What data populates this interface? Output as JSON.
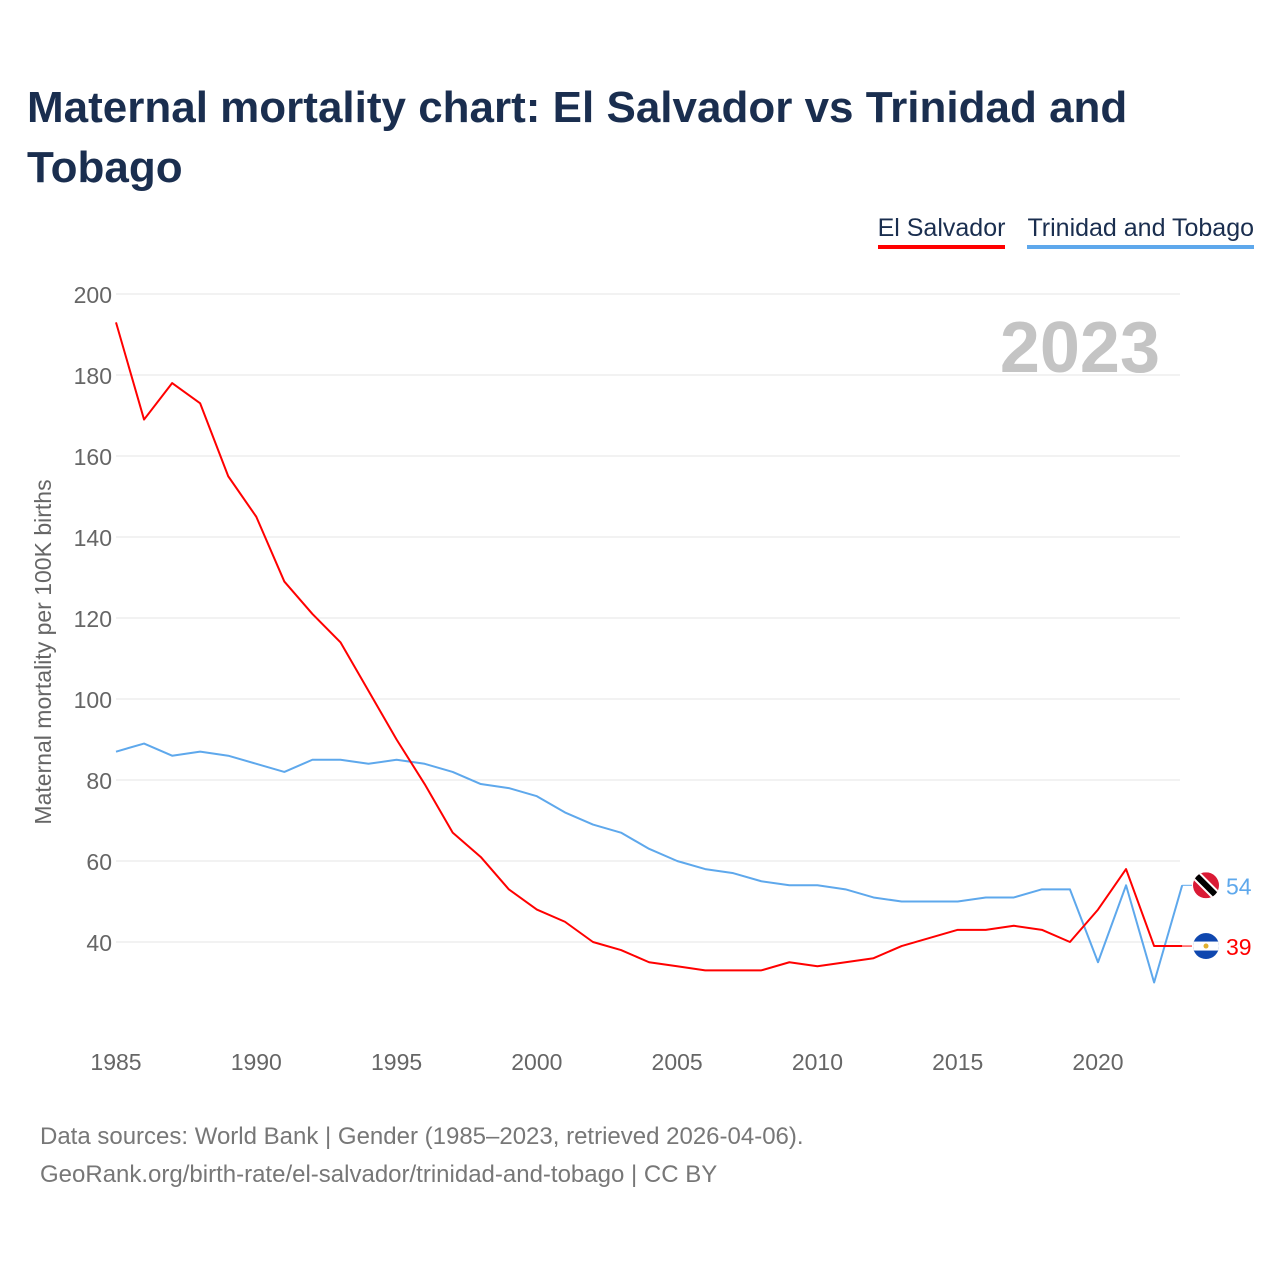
{
  "title": "Maternal mortality chart: El Salvador vs Trinidad and Tobago",
  "footer": {
    "line1": "Data sources: World Bank | Gender (1985–2023, retrieved 2026-04-06).",
    "line2": "GeoRank.org/birth-rate/el-salvador/trinidad-and-tobago | CC BY"
  },
  "chart_data": {
    "type": "line",
    "title": "Maternal mortality chart: El Salvador vs Trinidad and Tobago",
    "xlabel": "",
    "ylabel": "Maternal mortality per 100K births",
    "year_label": "2023",
    "xlim": [
      1985,
      2023
    ],
    "ylim": [
      20,
      200
    ],
    "yticks": [
      40,
      60,
      80,
      100,
      120,
      140,
      160,
      180,
      200
    ],
    "xticks": [
      1985,
      1990,
      1995,
      2000,
      2005,
      2010,
      2015,
      2020
    ],
    "legend_position": "top-right",
    "x": [
      1985,
      1986,
      1987,
      1988,
      1989,
      1990,
      1991,
      1992,
      1993,
      1994,
      1995,
      1996,
      1997,
      1998,
      1999,
      2000,
      2001,
      2002,
      2003,
      2004,
      2005,
      2006,
      2007,
      2008,
      2009,
      2010,
      2011,
      2012,
      2013,
      2014,
      2015,
      2016,
      2017,
      2018,
      2019,
      2020,
      2021,
      2022,
      2023
    ],
    "series": [
      {
        "name": "El Salvador",
        "color": "#ff0000",
        "end_label": "39",
        "values": [
          193,
          169,
          178,
          173,
          155,
          145,
          129,
          121,
          114,
          102,
          90,
          79,
          67,
          61,
          53,
          48,
          45,
          40,
          38,
          35,
          34,
          33,
          33,
          33,
          35,
          34,
          35,
          36,
          39,
          41,
          43,
          43,
          44,
          43,
          40,
          48,
          58,
          39,
          39
        ]
      },
      {
        "name": "Trinidad and Tobago",
        "color": "#5ea8ec",
        "end_label": "54",
        "values": [
          87,
          89,
          86,
          87,
          86,
          84,
          82,
          85,
          85,
          84,
          85,
          84,
          82,
          79,
          78,
          76,
          72,
          69,
          67,
          63,
          60,
          58,
          57,
          55,
          54,
          54,
          53,
          51,
          50,
          50,
          50,
          51,
          51,
          53,
          53,
          35,
          54,
          30,
          54
        ]
      }
    ]
  }
}
